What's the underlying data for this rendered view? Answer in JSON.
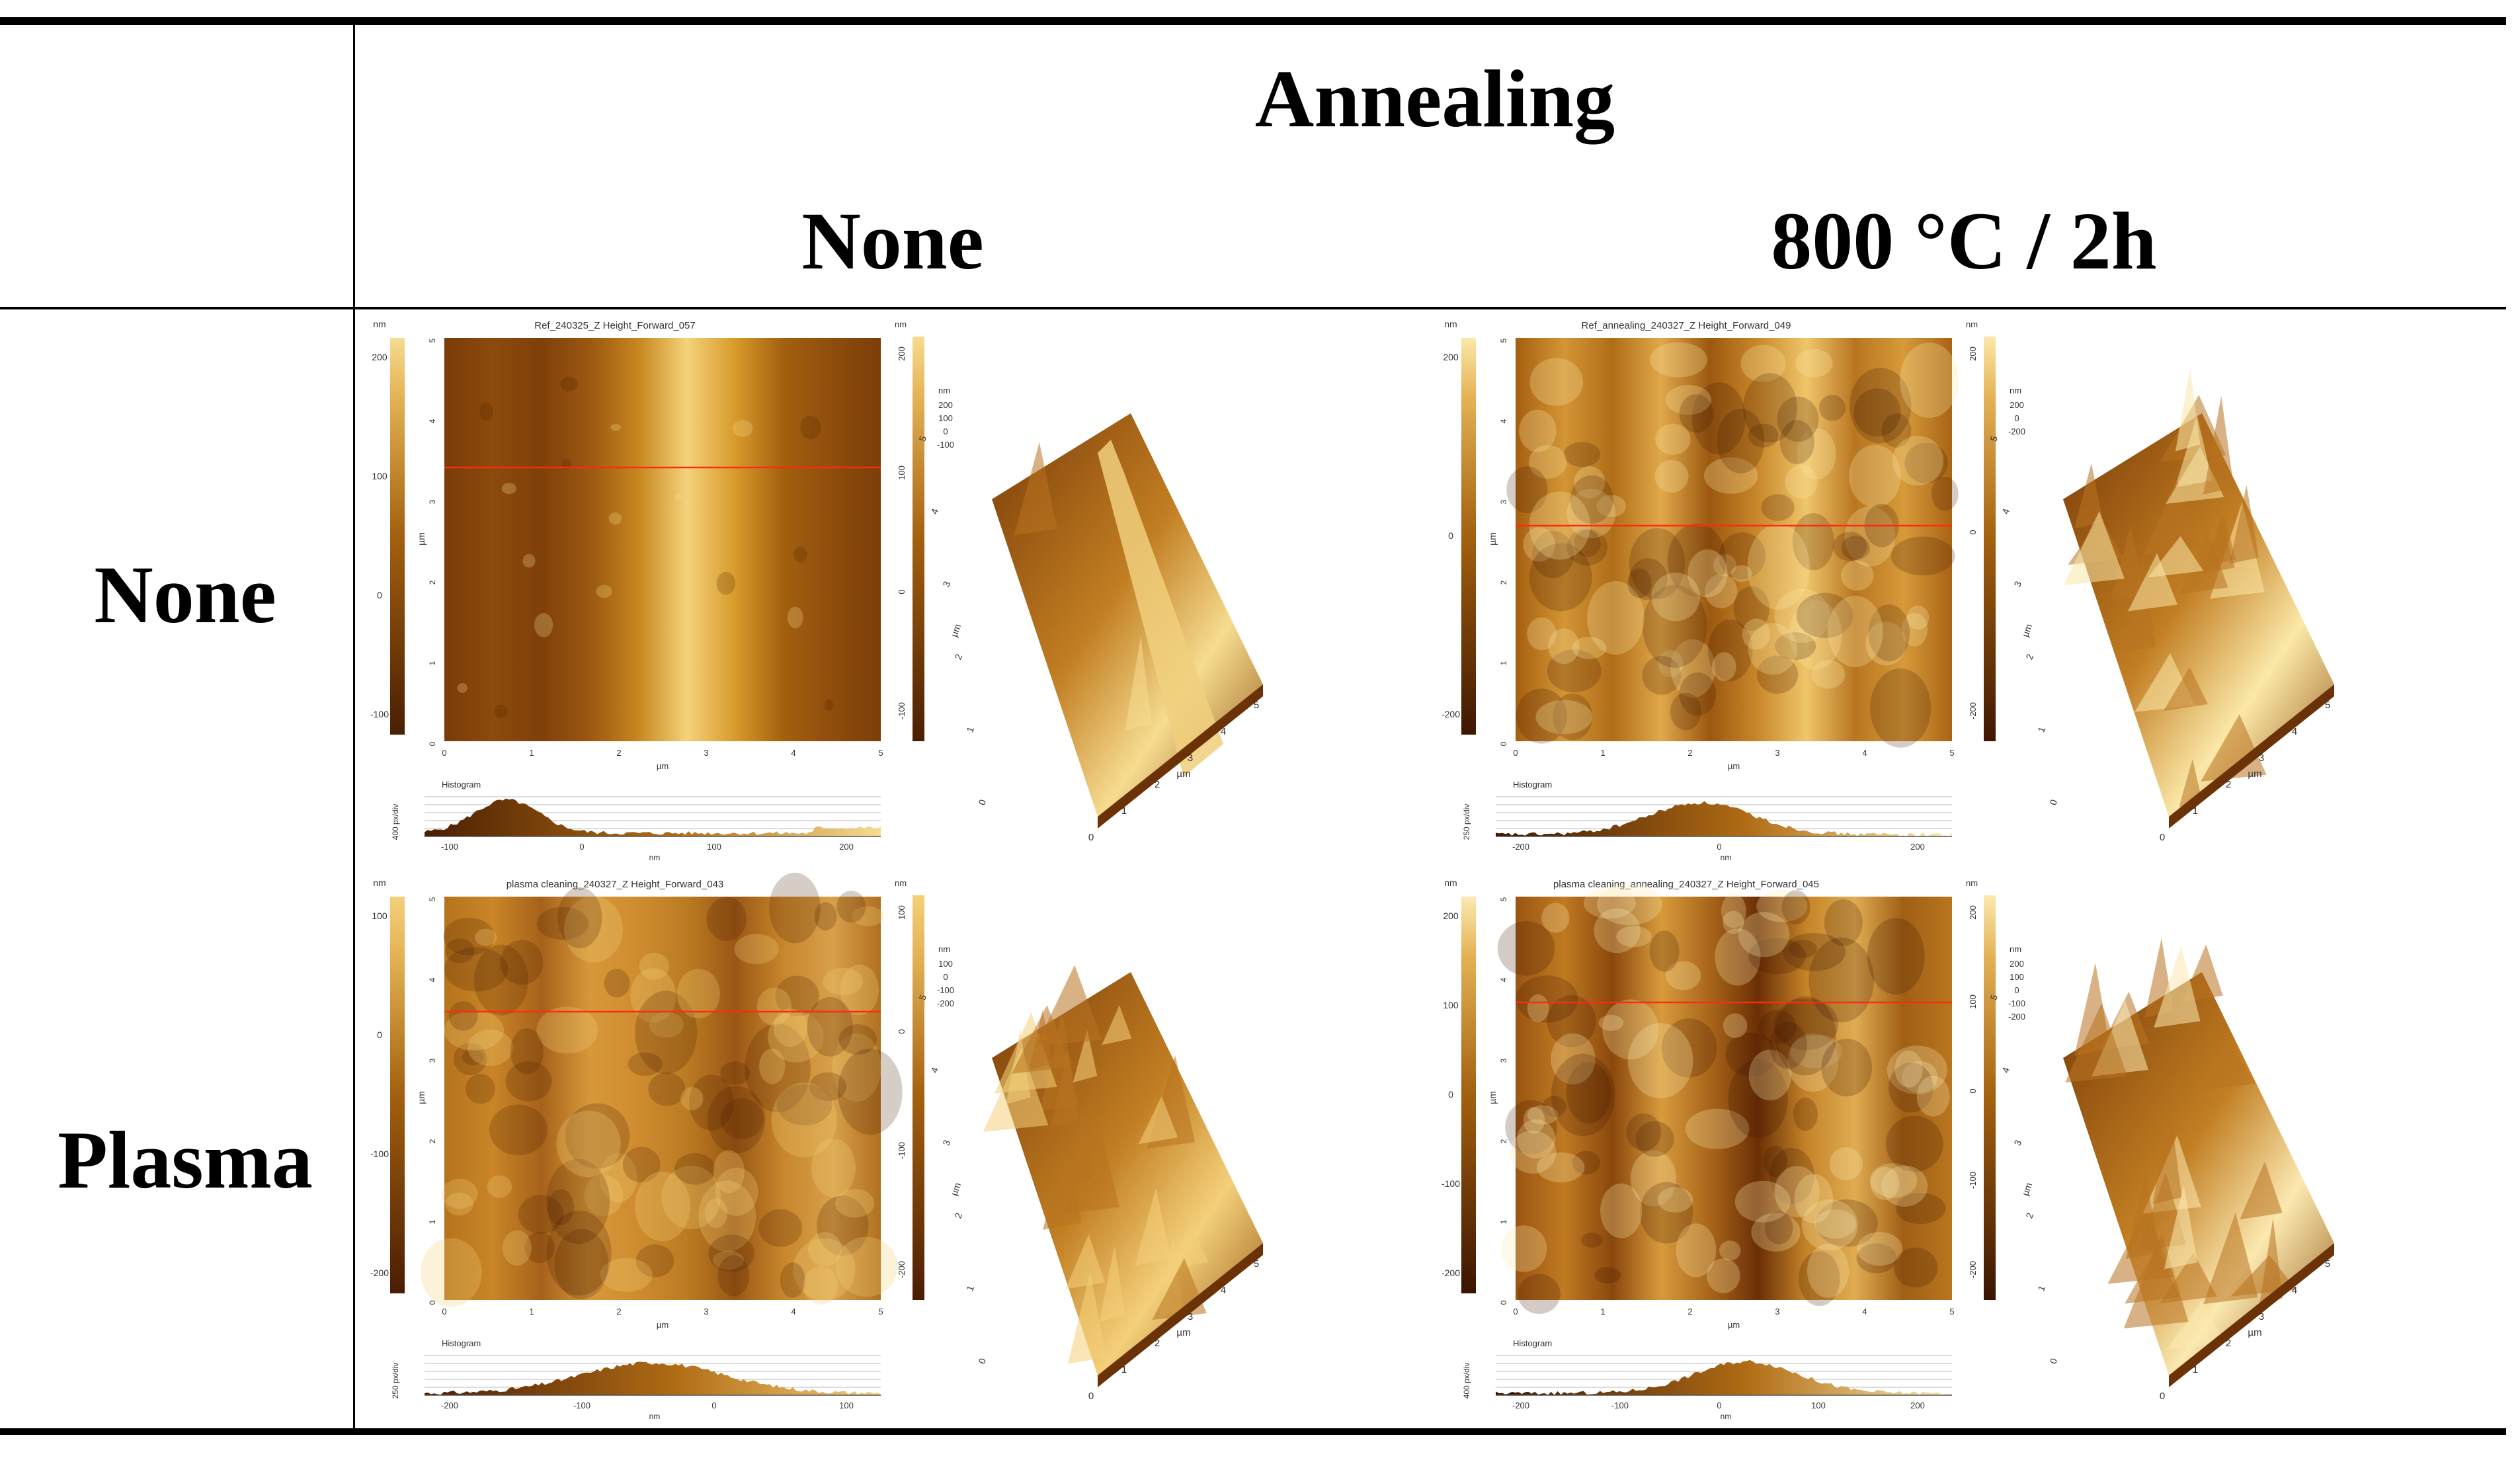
{
  "table": {
    "header_group": "Annealing",
    "col_headers": [
      "None",
      "800 °C / 2h"
    ],
    "row_headers": [
      "None",
      "Plasma"
    ]
  },
  "panels": [
    {
      "id": "ref",
      "title": "Ref_240325_Z Height_Forward_057",
      "colorbar_unit": "nm",
      "colorbar_ticks": [
        "200",
        "100",
        "0",
        "-100"
      ],
      "x_ticks": [
        "0",
        "1",
        "2",
        "3",
        "4",
        "5"
      ],
      "y_ticks": [
        "5",
        "4",
        "3",
        "2",
        "1",
        "0"
      ],
      "axis_unit": "µm",
      "histogram_label": "Histogram",
      "histogram_ylabel": "400 px/div",
      "histogram_ticks": [
        "-100",
        "0",
        "100",
        "200"
      ],
      "histogram_unit": "nm",
      "cb3d_ticks": [
        "200",
        "100",
        "0",
        "-100"
      ],
      "z3d_ticks": [
        "200",
        "100",
        "0",
        "-100"
      ],
      "z3d_unit": "nm",
      "axis3d_x": [
        "0",
        "1",
        "2",
        "3",
        "4",
        "5"
      ],
      "axis3d_y": [
        "0",
        "1",
        "2",
        "3",
        "4",
        "5"
      ],
      "axis3d_unit": "µm"
    },
    {
      "id": "annealing",
      "title": "Ref_annealing_240327_Z Height_Forward_049",
      "colorbar_unit": "nm",
      "colorbar_ticks": [
        "200",
        "0",
        "-200"
      ],
      "x_ticks": [
        "0",
        "1",
        "2",
        "3",
        "4",
        "5"
      ],
      "y_ticks": [
        "5",
        "4",
        "3",
        "2",
        "1",
        "0"
      ],
      "axis_unit": "µm",
      "histogram_label": "Histogram",
      "histogram_ylabel": "250 px/div",
      "histogram_ticks": [
        "-200",
        "0",
        "200"
      ],
      "histogram_unit": "nm",
      "cb3d_ticks": [
        "200",
        "0",
        "-200"
      ],
      "z3d_ticks": [
        "200",
        "0",
        "-200"
      ],
      "z3d_unit": "nm",
      "axis3d_x": [
        "0",
        "1",
        "2",
        "3",
        "4",
        "5"
      ],
      "axis3d_y": [
        "0",
        "1",
        "2",
        "3",
        "4",
        "5"
      ],
      "axis3d_unit": "µm"
    },
    {
      "id": "plasma",
      "title": "plasma cleaning_240327_Z Height_Forward_043",
      "colorbar_unit": "nm",
      "colorbar_ticks": [
        "100",
        "0",
        "-100",
        "-200"
      ],
      "x_ticks": [
        "0",
        "1",
        "2",
        "3",
        "4",
        "5"
      ],
      "y_ticks": [
        "5",
        "4",
        "3",
        "2",
        "1",
        "0"
      ],
      "axis_unit": "µm",
      "histogram_label": "Histogram",
      "histogram_ylabel": "250 px/div",
      "histogram_ticks": [
        "-200",
        "-100",
        "0",
        "100"
      ],
      "histogram_unit": "nm",
      "cb3d_ticks": [
        "100",
        "0",
        "-100",
        "-200"
      ],
      "z3d_ticks": [
        "100",
        "0",
        "-100",
        "-200"
      ],
      "z3d_unit": "nm",
      "axis3d_x": [
        "0",
        "1",
        "2",
        "3",
        "4",
        "5"
      ],
      "axis3d_y": [
        "0",
        "1",
        "2",
        "3",
        "4",
        "5"
      ],
      "axis3d_unit": "µm"
    },
    {
      "id": "plasma-annealing",
      "title": "plasma cleaning_annealing_240327_Z Height_Forward_045",
      "colorbar_unit": "nm",
      "colorbar_ticks": [
        "200",
        "100",
        "0",
        "-100",
        "-200"
      ],
      "x_ticks": [
        "0",
        "1",
        "2",
        "3",
        "4",
        "5"
      ],
      "y_ticks": [
        "5",
        "4",
        "3",
        "2",
        "1",
        "0"
      ],
      "axis_unit": "µm",
      "histogram_label": "Histogram",
      "histogram_ylabel": "400 px/div",
      "histogram_ticks": [
        "-200",
        "-100",
        "0",
        "100",
        "200"
      ],
      "histogram_unit": "nm",
      "cb3d_ticks": [
        "200",
        "100",
        "0",
        "-100",
        "-200"
      ],
      "z3d_ticks": [
        "200",
        "100",
        "0",
        "-100",
        "-200"
      ],
      "z3d_unit": "nm",
      "axis3d_x": [
        "0",
        "1",
        "2",
        "3",
        "4",
        "5"
      ],
      "axis3d_y": [
        "0",
        "1",
        "2",
        "3",
        "4",
        "5"
      ],
      "axis3d_unit": "µm"
    }
  ]
}
